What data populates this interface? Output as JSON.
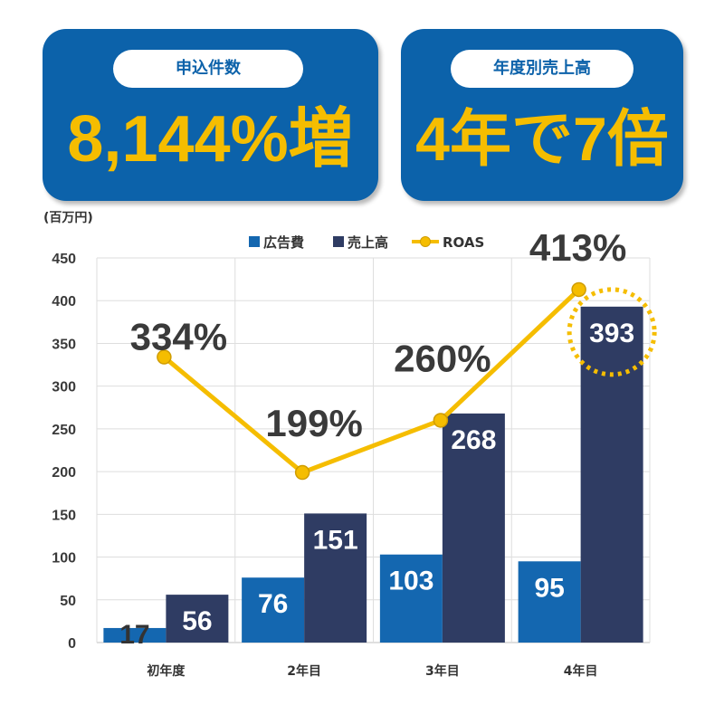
{
  "cards": [
    {
      "label": "申込件数",
      "value": "8,144%増"
    },
    {
      "label": "年度別売上高",
      "value": "4年で7倍"
    }
  ],
  "colors": {
    "card": "#0c62aa",
    "accent": "#f5bd00",
    "pill": "#ffffff"
  },
  "chart_data": {
    "type": "bar",
    "ylabel": "(百万円)",
    "categories": [
      "初年度",
      "2年目",
      "3年目",
      "4年目"
    ],
    "series": [
      {
        "name": "広告費",
        "type": "bar",
        "color": "#1467b0",
        "values": [
          17,
          76,
          103,
          95
        ]
      },
      {
        "name": "売上高",
        "type": "bar",
        "color": "#2f3c63",
        "values": [
          56,
          151,
          268,
          393
        ]
      },
      {
        "name": "ROAS",
        "type": "line",
        "color": "#f5bd00",
        "values": [
          334,
          199,
          260,
          413
        ],
        "labels": [
          "334%",
          "199%",
          "260%",
          "413%"
        ]
      }
    ],
    "ylim": [
      0,
      450
    ],
    "yticks": [
      0,
      50,
      100,
      150,
      200,
      250,
      300,
      350,
      400,
      450
    ],
    "grid": true,
    "legend": "top-center",
    "highlight": {
      "series_index": 1,
      "category_index": 3
    }
  }
}
